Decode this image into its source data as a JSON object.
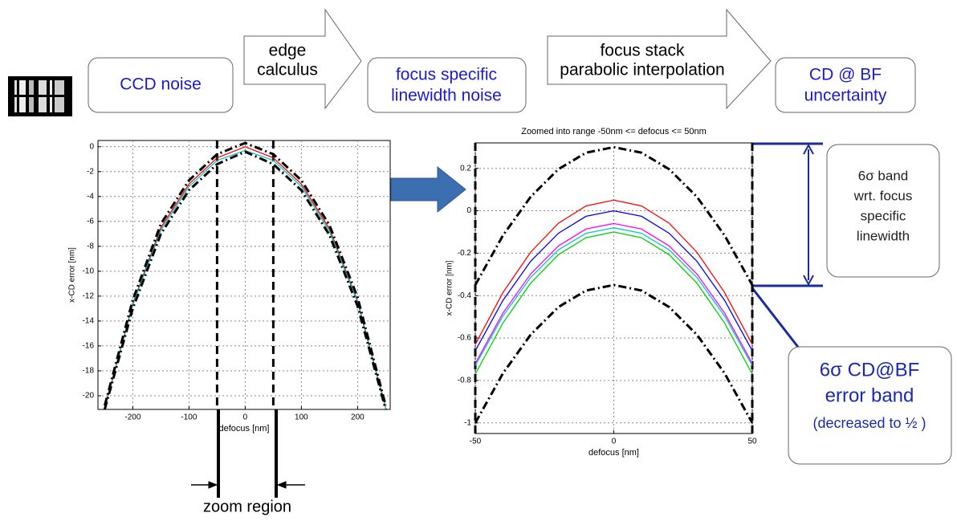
{
  "flow": {
    "steps": [
      [
        "CCD noise"
      ],
      [
        "edge",
        "calculus"
      ],
      [
        "focus specific",
        "linewidth noise"
      ],
      [
        "focus stack",
        "parabolic interpolation"
      ],
      [
        "CD @ BF",
        "uncertainty"
      ]
    ]
  },
  "chart_data": [
    {
      "type": "line",
      "xlabel": "defocus [nm]",
      "ylabel": "x-CD error [nm]",
      "x": [
        -250,
        -200,
        -150,
        -100,
        -50,
        0,
        50,
        100,
        150,
        200,
        250
      ],
      "series": [
        {
          "color": "#ff0000",
          "line_style": "solid",
          "values": [
            -21,
            -12.6,
            -6.5,
            -3,
            -0.9,
            0,
            -0.9,
            -3,
            -6.6,
            -12.4,
            -21
          ]
        },
        {
          "color": "#00c8c8",
          "line_style": "solid",
          "values": [
            -21,
            -12.7,
            -6.7,
            -3.2,
            -1.1,
            -0.3,
            -1.1,
            -3.2,
            -6.8,
            -12.5,
            -21
          ]
        },
        {
          "color": "#000000",
          "line_style": "dash-dot",
          "values": [
            -20.8,
            -12.3,
            -6.2,
            -2.7,
            -0.6,
            0.3,
            -0.6,
            -2.7,
            -6.3,
            -12.1,
            -20.8
          ]
        },
        {
          "color": "#000000",
          "line_style": "dash-dot",
          "values": [
            -21.1,
            -13,
            -7,
            -3.5,
            -1.4,
            -0.4,
            -1.4,
            -3.5,
            -7.1,
            -12.8,
            -21.1
          ]
        }
      ],
      "vlines": [
        -50,
        50
      ],
      "xlim": [
        -262,
        258
      ],
      "ylim": [
        -21.1,
        0.5
      ],
      "xticks": [
        -200,
        -100,
        0,
        100,
        200
      ],
      "yticks": [
        0,
        -2,
        -4,
        -6,
        -8,
        -10,
        -12,
        -14,
        -16,
        -18,
        -20
      ],
      "grid": true
    },
    {
      "type": "line",
      "title": "Zoomed into range  -50nm  <=  defocus  <=  50nm",
      "xlabel": "defocus [nm]",
      "ylabel": "x-CD error [nm]",
      "x": [
        -50,
        -40,
        -30,
        -20,
        -10,
        0,
        10,
        20,
        30,
        40,
        50
      ],
      "series": [
        {
          "color": "#ff0000",
          "line_style": "solid",
          "values": [
            -0.63,
            -0.385,
            -0.195,
            -0.059,
            0.023,
            0.05,
            0.023,
            -0.059,
            -0.195,
            -0.385,
            -0.63
          ]
        },
        {
          "color": "#0000ff",
          "line_style": "solid",
          "values": [
            -0.66,
            -0.422,
            -0.238,
            -0.106,
            -0.026,
            0,
            -0.026,
            -0.106,
            -0.238,
            -0.422,
            -0.66
          ]
        },
        {
          "color": "#ff00ff",
          "line_style": "solid",
          "values": [
            -0.72,
            -0.482,
            -0.298,
            -0.166,
            -0.086,
            -0.06,
            -0.086,
            -0.166,
            -0.298,
            -0.482,
            -0.72
          ]
        },
        {
          "color": "#00c8c8",
          "line_style": "solid",
          "values": [
            -0.73,
            -0.496,
            -0.314,
            -0.184,
            -0.106,
            -0.08,
            -0.106,
            -0.184,
            -0.314,
            -0.496,
            -0.73
          ]
        },
        {
          "color": "#00d000",
          "line_style": "solid",
          "values": [
            -0.77,
            -0.529,
            -0.341,
            -0.207,
            -0.127,
            -0.1,
            -0.127,
            -0.207,
            -0.341,
            -0.529,
            -0.77
          ]
        },
        {
          "color": "#000000",
          "line_style": "dash-dot",
          "values": [
            -0.35,
            -0.116,
            0.066,
            0.196,
            0.274,
            0.3,
            0.274,
            0.196,
            0.066,
            -0.116,
            -0.35
          ]
        },
        {
          "color": "#000000",
          "line_style": "dash-dot",
          "values": [
            -1,
            -0.766,
            -0.584,
            -0.454,
            -0.376,
            -0.35,
            -0.376,
            -0.454,
            -0.584,
            -0.766,
            -1
          ]
        }
      ],
      "vlines": [
        -50,
        50
      ],
      "xlim": [
        -50,
        50
      ],
      "ylim": [
        -1.05,
        0.32
      ],
      "xticks": [
        -50,
        0,
        50
      ],
      "yticks": [
        0.2,
        0,
        -0.2,
        -0.4,
        -0.6,
        -0.8,
        -1
      ],
      "grid": true
    }
  ],
  "annotations": {
    "zoom": "zoom region",
    "band_box": [
      "6σ band",
      "wrt. focus",
      "specific",
      "linewidth"
    ],
    "error_box": [
      "6σ  CD@BF",
      "error band",
      "(decreased to ½ )"
    ]
  }
}
